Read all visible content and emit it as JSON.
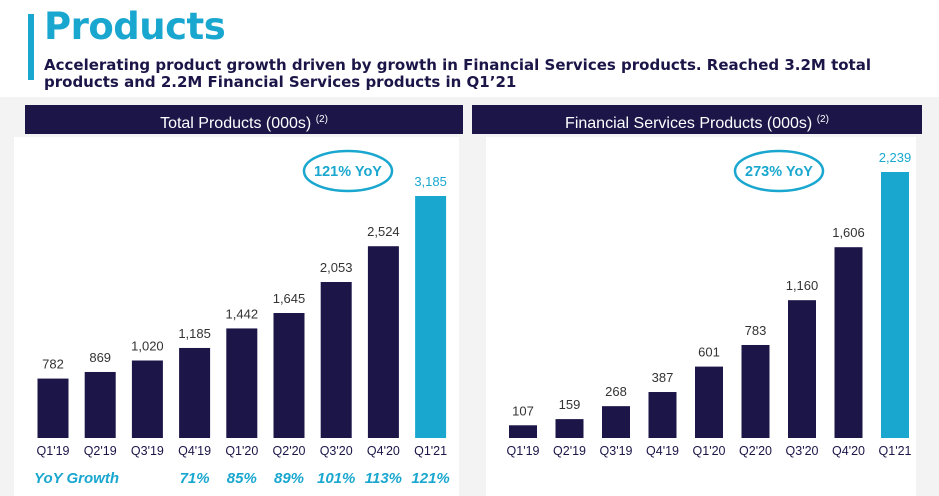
{
  "page": {
    "title": "Products",
    "subtitle": "Accelerating product growth driven by growth in Financial Services products. Reached 3.2M total products and 2.2M Financial Services products in Q1’21"
  },
  "colors": {
    "navy": "#1b1548",
    "accent": "#1aa7cf",
    "panel_bg": "#ffffff",
    "page_band": "#f3f3f3"
  },
  "chart_data": [
    {
      "type": "bar",
      "title": "Total Products (000s)",
      "footnote": "(2)",
      "categories": [
        "Q1'19",
        "Q2'19",
        "Q3'19",
        "Q4'19",
        "Q1'20",
        "Q2'20",
        "Q3'20",
        "Q4'20",
        "Q1'21"
      ],
      "values": [
        782,
        869,
        1020,
        1185,
        1442,
        1645,
        2053,
        2524,
        3185
      ],
      "value_labels": [
        "782",
        "869",
        "1,020",
        "1,185",
        "1,442",
        "1,645",
        "2,053",
        "2,524",
        "3,185"
      ],
      "highlight_index": 8,
      "callout": "121% YoY",
      "yoy_label": "YoY Growth",
      "yoy_categories": [
        "Q4'19",
        "Q1'20",
        "Q2'20",
        "Q3'20",
        "Q4'20",
        "Q1'21"
      ],
      "yoy_values": [
        "71%",
        "85%",
        "89%",
        "101%",
        "113%",
        "121%"
      ],
      "xlabel": "",
      "ylabel": "",
      "ylim": [
        0,
        3200
      ],
      "grid": false
    },
    {
      "type": "bar",
      "title": "Financial Services Products (000s)",
      "footnote": "(2)",
      "categories": [
        "Q1'19",
        "Q2'19",
        "Q3'19",
        "Q4'19",
        "Q1'20",
        "Q2'20",
        "Q3'20",
        "Q4'20",
        "Q1'21"
      ],
      "values": [
        107,
        159,
        268,
        387,
        601,
        783,
        1160,
        1606,
        2239
      ],
      "value_labels": [
        "107",
        "159",
        "268",
        "387",
        "601",
        "783",
        "1,160",
        "1,606",
        "2,239"
      ],
      "highlight_index": 8,
      "callout": "273% YoY",
      "xlabel": "",
      "ylabel": "",
      "ylim": [
        0,
        2250
      ],
      "grid": false
    }
  ]
}
